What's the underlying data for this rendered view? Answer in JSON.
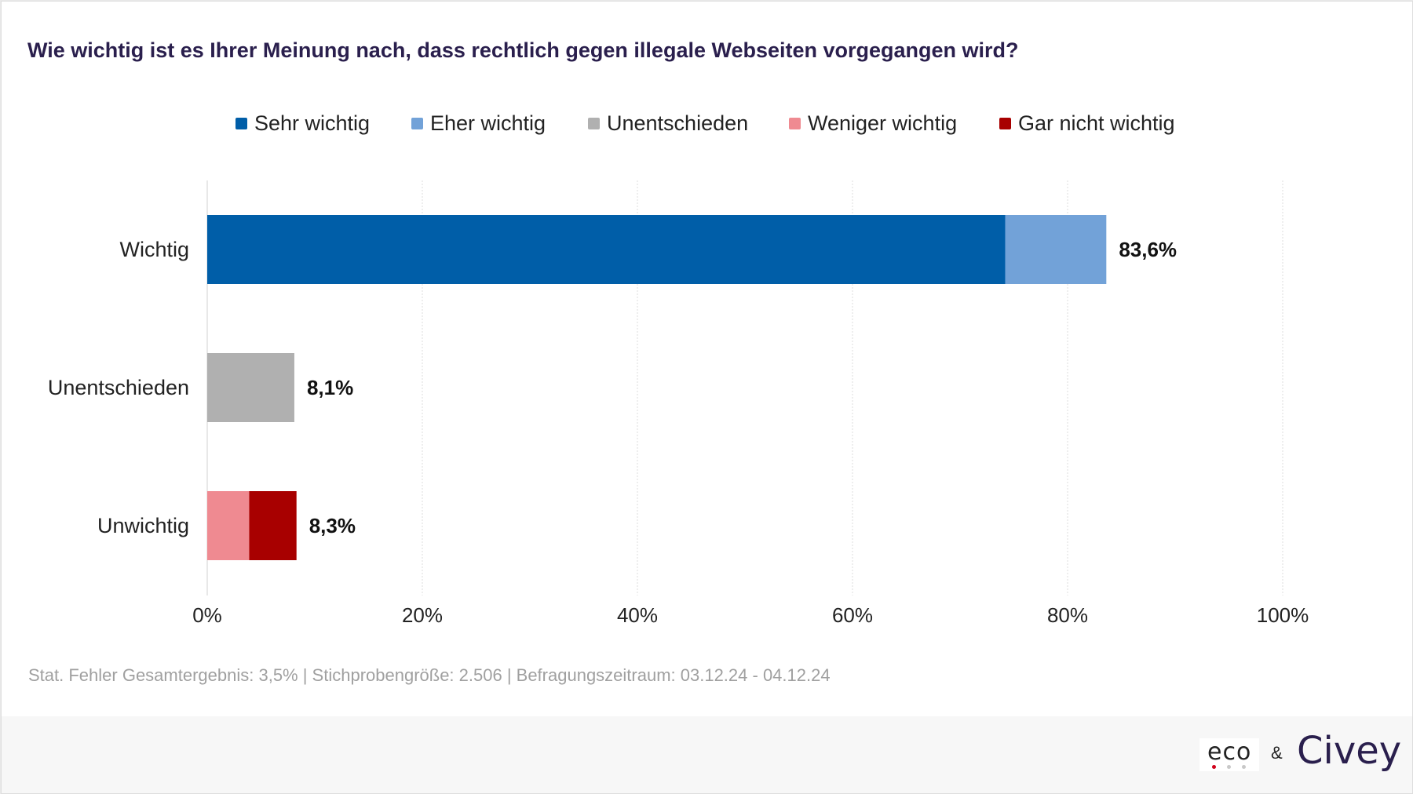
{
  "title": "Wie wichtig ist es Ihrer Meinung nach, dass rechtlich gegen illegale Webseiten vorgegangen wird?",
  "footnote": "Stat. Fehler Gesamtergebnis: 3,5% | Stichprobengröße: 2.506 | Befragungszeitraum: 03.12.24 - 04.12.24",
  "logos": {
    "eco": "eco",
    "ampersand": "&",
    "civey": "Civey"
  },
  "chart_data": {
    "type": "bar",
    "orientation": "horizontal",
    "stacked": true,
    "title": "Wie wichtig ist es Ihrer Meinung nach, dass rechtlich gegen illegale Webseiten vorgegangen wird?",
    "categories": [
      "Wichtig",
      "Unentschieden",
      "Unwichtig"
    ],
    "series": [
      {
        "name": "Sehr wichtig",
        "color": "#005ea8",
        "values": [
          74.2,
          0,
          0
        ]
      },
      {
        "name": "Eher wichtig",
        "color": "#72a2d8",
        "values": [
          9.4,
          0,
          0
        ]
      },
      {
        "name": "Unentschieden",
        "color": "#b0b0b0",
        "values": [
          0,
          8.1,
          0
        ]
      },
      {
        "name": "Weniger wichtig",
        "color": "#ef8a91",
        "values": [
          0,
          0,
          3.9
        ]
      },
      {
        "name": "Gar nicht wichtig",
        "color": "#a80000",
        "values": [
          0,
          0,
          4.4
        ]
      }
    ],
    "totals": [
      83.6,
      8.1,
      8.3
    ],
    "total_labels": [
      "83,6%",
      "8,1%",
      "8,3%"
    ],
    "xlim": [
      0,
      100
    ],
    "xticks": [
      0,
      20,
      40,
      60,
      80,
      100
    ],
    "xtick_labels": [
      "0%",
      "20%",
      "40%",
      "60%",
      "80%",
      "100%"
    ],
    "grid": true,
    "legend_position": "top"
  }
}
